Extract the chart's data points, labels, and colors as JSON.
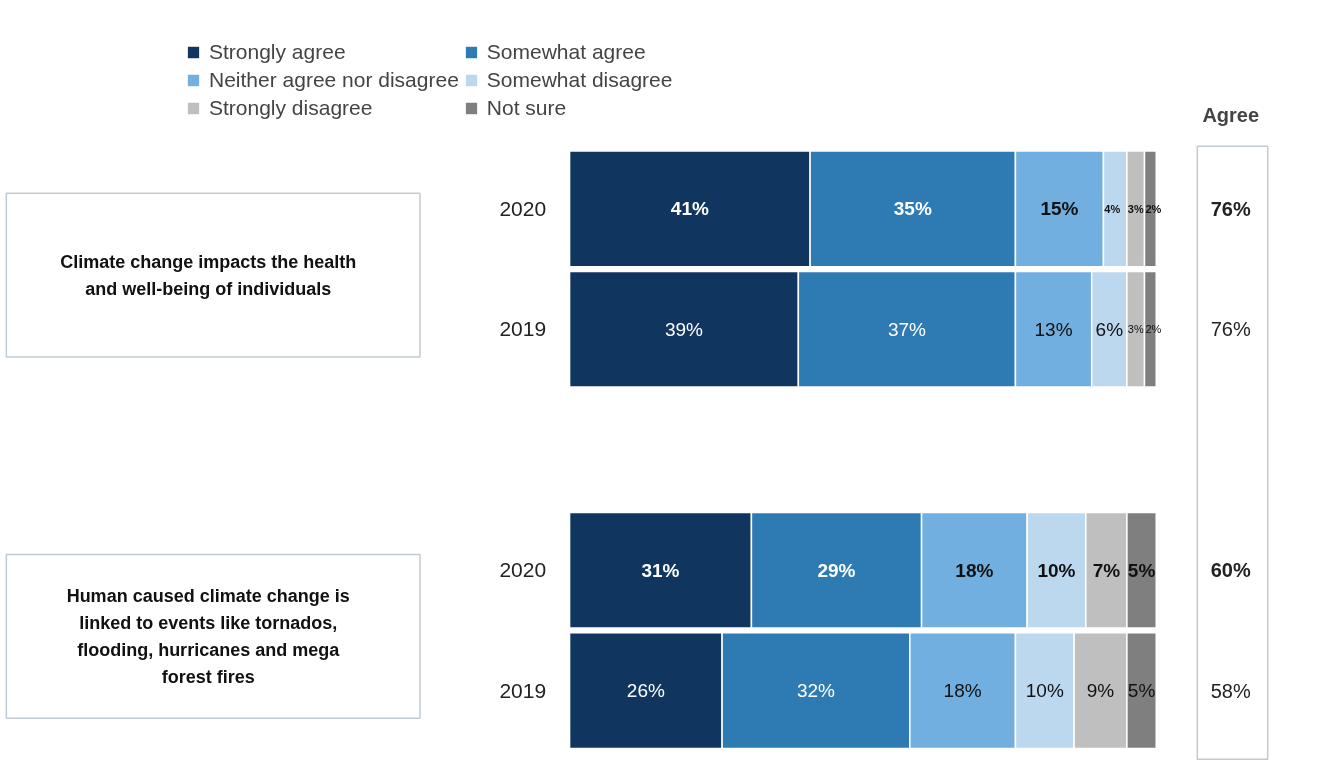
{
  "chart_data": {
    "type": "bar",
    "orientation": "horizontal",
    "stacked": true,
    "categories": [
      "2020",
      "2019",
      null,
      "2020",
      "2019"
    ],
    "series": [
      {
        "name": "Strongly agree",
        "color": "#10365f",
        "values": [
          41,
          39,
          null,
          31,
          26
        ],
        "value_labels": [
          "41%",
          "39%",
          null,
          "31%",
          "26%"
        ]
      },
      {
        "name": "Somewhat agree",
        "color": "#2e7bb4",
        "values": [
          35,
          37,
          null,
          29,
          32
        ],
        "value_labels": [
          "35%",
          "37%",
          null,
          "29%",
          "32%"
        ]
      },
      {
        "name": "Neither agree nor disagree",
        "color": "#70afdf",
        "values": [
          15,
          13,
          null,
          18,
          18
        ],
        "value_labels": [
          "15%",
          "13%",
          null,
          "18%",
          "18%"
        ]
      },
      {
        "name": "Somewhat disagree",
        "color": "#bcd8ef",
        "values": [
          4,
          6,
          null,
          10,
          10
        ],
        "value_labels": [
          "4%",
          "6%",
          null,
          "10%",
          "10%"
        ]
      },
      {
        "name": "Strongly disagree",
        "color": "#bfbfbf",
        "values": [
          3,
          3,
          null,
          7,
          9
        ],
        "value_labels": [
          "3%",
          "3%",
          null,
          "7%",
          "9%"
        ]
      },
      {
        "name": "Not sure",
        "color": "#7f7f7f",
        "values": [
          2,
          2,
          null,
          5,
          5
        ],
        "value_labels": [
          "2%",
          "2%",
          null,
          "5%",
          "5%"
        ]
      }
    ],
    "legend": "top",
    "grid": false,
    "annotations": [
      "Climate change impacts the health and well-being of individuals",
      "Human caused climate change is linked to events like tornados, flooding, hurricanes and mega forest fires",
      "Agree",
      "76%",
      "76%",
      "60%",
      "58%"
    ]
  }
}
